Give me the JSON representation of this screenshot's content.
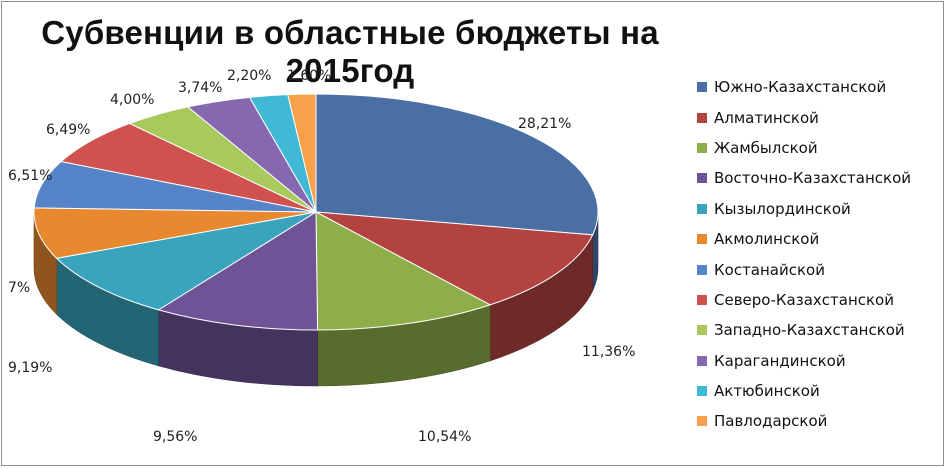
{
  "chart_data": {
    "type": "pie",
    "title": "Субвенции в областные бюджеты на 2015год",
    "legend_position": "right",
    "slices": [
      {
        "name": "Южно-Казахстанской",
        "value": 28.21,
        "label": "28,21%",
        "color": "#4a6fa5"
      },
      {
        "name": "Алматинской",
        "value": 11.36,
        "label": "11,36%",
        "color": "#b24341"
      },
      {
        "name": "Жамбылской",
        "value": 10.54,
        "label": "10,54%",
        "color": "#8eae4a"
      },
      {
        "name": "Восточно-Казахстанской",
        "value": 9.56,
        "label": "9,56%",
        "color": "#6e5496"
      },
      {
        "name": "Кызылординской",
        "value": 9.19,
        "label": "9,19%",
        "color": "#3aa3bd"
      },
      {
        "name": "Акмолинской",
        "value": 7,
        "label": "7%",
        "color": "#e9892f"
      },
      {
        "name": "Костанайской",
        "value": 6.51,
        "label": "6,51%",
        "color": "#5585c8"
      },
      {
        "name": "Северо-Казахстанской",
        "value": 6.49,
        "label": "6,49%",
        "color": "#d0524f"
      },
      {
        "name": "Западно-Казахстанской",
        "value": 4.0,
        "label": "4,00%",
        "color": "#a8c95c"
      },
      {
        "name": "Карагандинской",
        "value": 3.74,
        "label": "3,74%",
        "color": "#8668b0"
      },
      {
        "name": "Актюбинской",
        "value": 2.2,
        "label": "2,20%",
        "color": "#40b9d6"
      },
      {
        "name": "Павлодарской",
        "value": 1.6,
        "label": "1,60%",
        "color": "#f7a24b"
      }
    ]
  }
}
